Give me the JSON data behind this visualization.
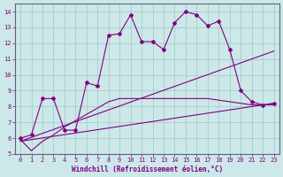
{
  "xlabel": "Windchill (Refroidissement éolien,°C)",
  "bg_color": "#cce8e8",
  "line_color": "#800080",
  "xlim": [
    -0.5,
    23.5
  ],
  "ylim": [
    5,
    14.5
  ],
  "xticks": [
    0,
    1,
    2,
    3,
    4,
    5,
    6,
    7,
    8,
    9,
    10,
    11,
    12,
    13,
    14,
    15,
    16,
    17,
    18,
    19,
    20,
    21,
    22,
    23
  ],
  "yticks": [
    5,
    6,
    7,
    8,
    9,
    10,
    11,
    12,
    13,
    14
  ],
  "series1_x": [
    0,
    1,
    2,
    3,
    4,
    5,
    6,
    7,
    8,
    9,
    10,
    11,
    12,
    13,
    14,
    15,
    16,
    17,
    18,
    19,
    20,
    21,
    22,
    23
  ],
  "series1_y": [
    6.0,
    6.2,
    8.5,
    8.5,
    6.5,
    6.5,
    9.5,
    9.3,
    12.5,
    12.6,
    13.8,
    12.1,
    12.1,
    11.6,
    13.3,
    14.0,
    13.8,
    13.1,
    13.4,
    11.6,
    9.0,
    8.3,
    8.1,
    8.2
  ],
  "series2_x": [
    0,
    1,
    2,
    3,
    4,
    5,
    6,
    7,
    8,
    9,
    10,
    11,
    12,
    13,
    14,
    15,
    16,
    17,
    18,
    19,
    20,
    21,
    22,
    23
  ],
  "series2_y": [
    5.9,
    5.2,
    5.8,
    6.2,
    6.7,
    7.1,
    7.5,
    7.9,
    8.3,
    8.5,
    8.5,
    8.5,
    8.5,
    8.5,
    8.5,
    8.5,
    8.5,
    8.5,
    8.4,
    8.3,
    8.2,
    8.1,
    8.1,
    8.1
  ],
  "series3_x": [
    0,
    23
  ],
  "series3_y": [
    5.8,
    11.5
  ],
  "series4_x": [
    0,
    23
  ],
  "series4_y": [
    5.8,
    8.2
  ],
  "font_family": "monospace"
}
